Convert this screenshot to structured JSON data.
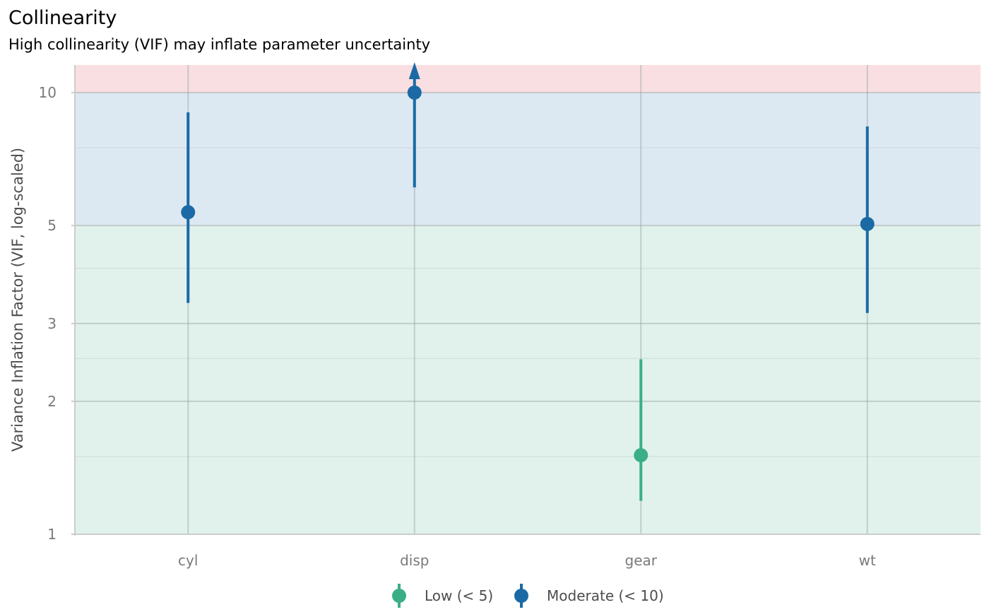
{
  "chart_data": {
    "type": "scatter",
    "title": "Collinearity",
    "subtitle": "High collinearity (VIF) may inflate parameter uncertainty",
    "xlabel": "",
    "ylabel": "Variance Inflation Factor (VIF, log-scaled)",
    "y_scale": "log",
    "ylim": [
      1,
      12
    ],
    "y_ticks": [
      1,
      2,
      3,
      5,
      10
    ],
    "y_minor_ticks": [
      1.5,
      2.5,
      4,
      7.5
    ],
    "categories": [
      "cyl",
      "disp",
      "gear",
      "wt"
    ],
    "points": [
      {
        "term": "cyl",
        "vif": 5.36,
        "ci_low": 3.34,
        "ci_high": 9.02,
        "group": "Moderate (< 10)"
      },
      {
        "term": "disp",
        "vif": 10.0,
        "ci_low": 6.1,
        "ci_high": 12.0,
        "group": "Moderate (< 10)",
        "ci_high_truncated": true
      },
      {
        "term": "gear",
        "vif": 1.51,
        "ci_low": 1.19,
        "ci_high": 2.49,
        "group": "Low (< 5)"
      },
      {
        "term": "wt",
        "vif": 5.04,
        "ci_low": 3.17,
        "ci_high": 8.38,
        "group": "Moderate (< 10)"
      }
    ],
    "bands": [
      {
        "from": 1,
        "to": 5,
        "label": "low",
        "color": "#e1f2ec"
      },
      {
        "from": 5,
        "to": 10,
        "label": "moderate",
        "color": "#dde9f2"
      },
      {
        "from": 10,
        "to": 12,
        "label": "high",
        "color": "#f9dfe1"
      }
    ],
    "legend": {
      "position": "bottom",
      "entries": [
        {
          "label": "Low (< 5)",
          "color": "#3aaf85"
        },
        {
          "label": "Moderate (< 10)",
          "color": "#1b6aa5"
        }
      ]
    },
    "colors": {
      "low": "#3aaf85",
      "moderate": "#1b6aa5"
    },
    "grid": true
  }
}
